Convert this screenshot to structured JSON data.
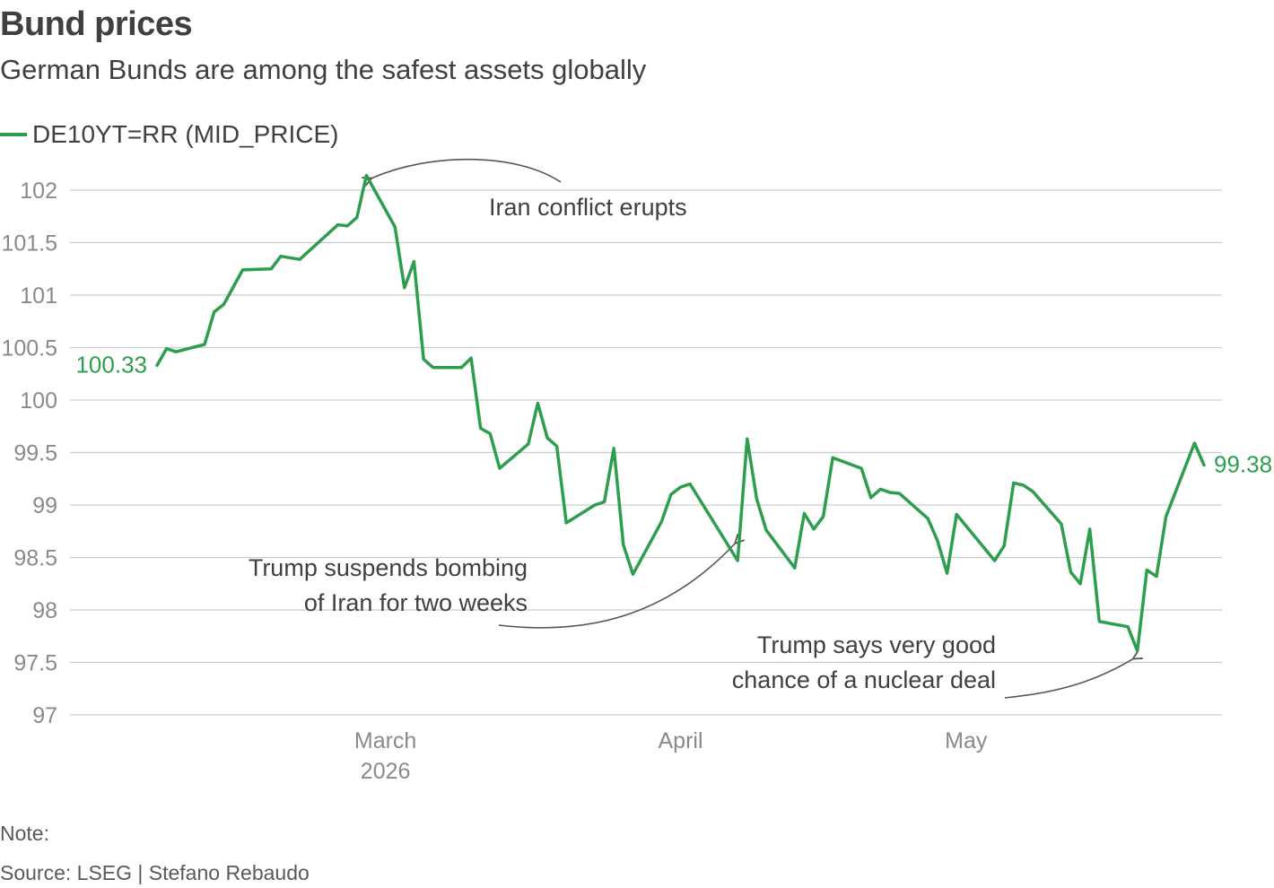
{
  "title": "Bund prices",
  "subtitle": "German Bunds are among the safest assets globally",
  "colors": {
    "series": "#2e9e4e",
    "grid": "#cccccc",
    "axis_text": "#8a8a8a",
    "annotation": "#555555"
  },
  "note": "Note:",
  "source": "Source: LSEG | Stefano Rebaudo",
  "chart_data": {
    "type": "line",
    "ylim": [
      97,
      102
    ],
    "yticks": [
      "97",
      "97.5",
      "98",
      "98.5",
      "99",
      "99.5",
      "100",
      "100.5",
      "101",
      "101.5",
      "102"
    ],
    "xlim": [
      "2026-02-03",
      "2026-05-22"
    ],
    "xticks": [
      {
        "date": "2026-03-01",
        "label": "March",
        "sublabel": "2026"
      },
      {
        "date": "2026-04-01",
        "label": "April",
        "sublabel": ""
      },
      {
        "date": "2026-05-01",
        "label": "May",
        "sublabel": ""
      }
    ],
    "grid": true,
    "legend": "top-left",
    "series": [
      {
        "name": "DE10YT=RR (MID_PRICE)",
        "first_label": "100.33",
        "last_label": "99.38",
        "points": [
          [
            "2026-02-05",
            100.33
          ],
          [
            "2026-02-06",
            100.49
          ],
          [
            "2026-02-07",
            100.46
          ],
          [
            "2026-02-10",
            100.53
          ],
          [
            "2026-02-11",
            100.84
          ],
          [
            "2026-02-12",
            100.91
          ],
          [
            "2026-02-14",
            101.24
          ],
          [
            "2026-02-17",
            101.25
          ],
          [
            "2026-02-18",
            101.37
          ],
          [
            "2026-02-20",
            101.34
          ],
          [
            "2026-02-24",
            101.67
          ],
          [
            "2026-02-25",
            101.66
          ],
          [
            "2026-02-26",
            101.74
          ],
          [
            "2026-02-27",
            102.14
          ],
          [
            "2026-03-02",
            101.65
          ],
          [
            "2026-03-03",
            101.07
          ],
          [
            "2026-03-04",
            101.32
          ],
          [
            "2026-03-05",
            100.39
          ],
          [
            "2026-03-06",
            100.31
          ],
          [
            "2026-03-09",
            100.31
          ],
          [
            "2026-03-10",
            100.4
          ],
          [
            "2026-03-11",
            99.73
          ],
          [
            "2026-03-12",
            99.68
          ],
          [
            "2026-03-13",
            99.35
          ],
          [
            "2026-03-16",
            99.58
          ],
          [
            "2026-03-17",
            99.97
          ],
          [
            "2026-03-18",
            99.64
          ],
          [
            "2026-03-19",
            99.56
          ],
          [
            "2026-03-20",
            98.83
          ],
          [
            "2026-03-23",
            99.0
          ],
          [
            "2026-03-24",
            99.03
          ],
          [
            "2026-03-25",
            99.54
          ],
          [
            "2026-03-26",
            98.62
          ],
          [
            "2026-03-27",
            98.34
          ],
          [
            "2026-03-30",
            98.84
          ],
          [
            "2026-03-31",
            99.1
          ],
          [
            "2026-04-01",
            99.17
          ],
          [
            "2026-04-02",
            99.2
          ],
          [
            "2026-04-07",
            98.47
          ],
          [
            "2026-04-08",
            99.63
          ],
          [
            "2026-04-09",
            99.06
          ],
          [
            "2026-04-10",
            98.76
          ],
          [
            "2026-04-13",
            98.4
          ],
          [
            "2026-04-14",
            98.92
          ],
          [
            "2026-04-15",
            98.77
          ],
          [
            "2026-04-16",
            98.89
          ],
          [
            "2026-04-17",
            99.45
          ],
          [
            "2026-04-20",
            99.35
          ],
          [
            "2026-04-21",
            99.07
          ],
          [
            "2026-04-22",
            99.15
          ],
          [
            "2026-04-23",
            99.12
          ],
          [
            "2026-04-24",
            99.11
          ],
          [
            "2026-04-27",
            98.87
          ],
          [
            "2026-04-28",
            98.66
          ],
          [
            "2026-04-29",
            98.35
          ],
          [
            "2026-04-30",
            98.91
          ],
          [
            "2026-05-04",
            98.47
          ],
          [
            "2026-05-05",
            98.61
          ],
          [
            "2026-05-06",
            99.21
          ],
          [
            "2026-05-07",
            99.19
          ],
          [
            "2026-05-08",
            99.13
          ],
          [
            "2026-05-11",
            98.82
          ],
          [
            "2026-05-12",
            98.36
          ],
          [
            "2026-05-13",
            98.25
          ],
          [
            "2026-05-14",
            98.77
          ],
          [
            "2026-05-15",
            97.89
          ],
          [
            "2026-05-18",
            97.84
          ],
          [
            "2026-05-19",
            97.61
          ],
          [
            "2026-05-20",
            98.38
          ],
          [
            "2026-05-21",
            98.32
          ],
          [
            "2026-05-22",
            98.89
          ],
          [
            "2026-05-25",
            99.59
          ],
          [
            "2026-05-26",
            99.38
          ]
        ]
      }
    ],
    "annotations": [
      {
        "text": [
          "Iran conflict erupts"
        ],
        "target": [
          "2026-02-27",
          102.14
        ]
      },
      {
        "text": [
          "Trump suspends bombing",
          "of Iran for two weeks"
        ],
        "target": [
          "2026-04-07",
          98.47
        ]
      },
      {
        "text": [
          "Trump says very good",
          "chance of a nuclear deal"
        ],
        "target": [
          "2026-05-19",
          97.61
        ]
      }
    ]
  }
}
